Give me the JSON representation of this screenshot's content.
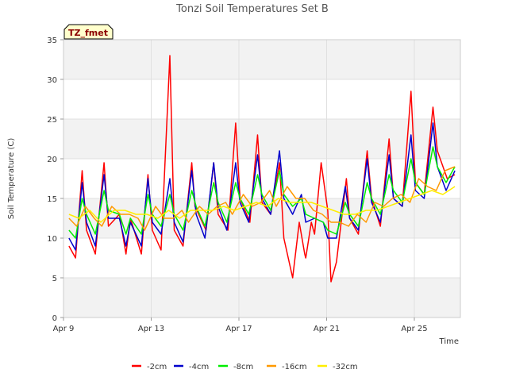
{
  "chart_data": {
    "type": "line",
    "title": "Tonzi Soil Temperatures Set B",
    "xlabel": "Time",
    "ylabel": "Soil Temperature (C)",
    "badge": "TZ_fmet",
    "xlim": [
      0,
      18.1
    ],
    "ylim": [
      0,
      35
    ],
    "yticks": [
      0,
      5,
      10,
      15,
      20,
      25,
      30,
      35
    ],
    "xticks": [
      {
        "day": 0,
        "label": "Apr 9"
      },
      {
        "day": 4,
        "label": "Apr 13"
      },
      {
        "day": 8,
        "label": "Apr 17"
      },
      {
        "day": 12,
        "label": "Apr 21"
      },
      {
        "day": 16,
        "label": "Apr 25"
      }
    ],
    "grid": true,
    "legend_position": "bottom",
    "series": [
      {
        "name": "-2cm",
        "color": "#ff0000",
        "x": [
          0.25,
          0.55,
          0.85,
          1.05,
          1.45,
          1.85,
          2.05,
          2.55,
          2.85,
          3.05,
          3.55,
          3.85,
          4.05,
          4.45,
          4.85,
          5.05,
          5.45,
          5.85,
          6.0,
          6.5,
          6.85,
          7.05,
          7.5,
          7.85,
          8.05,
          8.5,
          8.85,
          9.05,
          9.45,
          9.85,
          10.05,
          10.45,
          10.75,
          11.0,
          11.05,
          11.3,
          11.45,
          11.75,
          12.05,
          12.2,
          12.45,
          12.9,
          13.05,
          13.45,
          13.85,
          14.05,
          14.45,
          14.85,
          15.05,
          15.45,
          15.85,
          16.05,
          16.45,
          16.85,
          17.05,
          17.5,
          17.85
        ],
        "y": [
          9,
          7.5,
          18.5,
          11,
          8,
          19.5,
          11.5,
          13,
          8,
          12.5,
          8,
          18,
          11,
          8.5,
          33,
          11,
          9,
          19.5,
          14,
          11,
          19.5,
          13,
          11,
          24.5,
          15,
          12,
          23,
          14.5,
          13,
          19.5,
          10,
          5,
          12,
          8,
          7.5,
          12,
          10.5,
          19.5,
          13.5,
          4.5,
          7,
          17.5,
          12.5,
          10.5,
          21,
          15,
          11.5,
          22.5,
          15,
          14,
          28.5,
          17,
          15.5,
          26.5,
          21,
          17.5,
          18
        ]
      },
      {
        "name": "-4cm",
        "color": "#0000cc",
        "x": [
          0.25,
          0.55,
          0.85,
          1.05,
          1.45,
          1.85,
          2.05,
          2.55,
          2.85,
          3.05,
          3.55,
          3.85,
          4.05,
          4.45,
          4.85,
          5.05,
          5.45,
          5.85,
          6.05,
          6.45,
          6.85,
          7.05,
          7.45,
          7.85,
          8.05,
          8.45,
          8.85,
          9.05,
          9.45,
          9.85,
          10.05,
          10.45,
          10.85,
          11.05,
          11.45,
          11.85,
          12.05,
          12.45,
          12.85,
          13.05,
          13.45,
          13.85,
          14.05,
          14.45,
          14.85,
          15.05,
          15.45,
          15.85,
          16.05,
          16.45,
          16.85,
          17.05,
          17.45,
          17.85
        ],
        "y": [
          10,
          8.5,
          17,
          12,
          9,
          18,
          12.5,
          12.5,
          9,
          12,
          9,
          17.5,
          12,
          10.5,
          17.5,
          12,
          9.5,
          18.5,
          13,
          10,
          19.5,
          14,
          11,
          19.5,
          14.5,
          12,
          20.5,
          15,
          13,
          21,
          15,
          13,
          15.5,
          12,
          12.5,
          12,
          10,
          10,
          16.5,
          12.5,
          11,
          20,
          14.5,
          12,
          20.5,
          15,
          14,
          23,
          16,
          15,
          24.5,
          19,
          16,
          18.5
        ]
      },
      {
        "name": "-8cm",
        "color": "#00ee00",
        "x": [
          0.25,
          0.55,
          0.85,
          1.05,
          1.45,
          1.85,
          2.05,
          2.55,
          2.85,
          3.05,
          3.55,
          3.85,
          4.05,
          4.45,
          4.85,
          5.05,
          5.45,
          5.85,
          6.05,
          6.45,
          6.85,
          7.05,
          7.45,
          7.85,
          8.05,
          8.45,
          8.85,
          9.05,
          9.45,
          9.85,
          10.05,
          10.45,
          10.85,
          11.05,
          11.45,
          11.85,
          12.05,
          12.45,
          12.85,
          13.05,
          13.45,
          13.85,
          14.05,
          14.45,
          14.85,
          15.05,
          15.45,
          15.85,
          16.05,
          16.45,
          16.85,
          17.05,
          17.45,
          17.85
        ],
        "y": [
          11,
          10,
          15,
          13,
          10.5,
          16,
          13.5,
          13,
          10.5,
          12.5,
          10.5,
          15.5,
          13,
          11.5,
          15.5,
          13,
          11,
          16,
          14,
          11.5,
          17,
          14.5,
          12,
          17,
          15,
          13,
          18,
          15.5,
          13.5,
          18.5,
          15.5,
          14,
          15,
          13,
          12.5,
          12,
          11,
          10.5,
          14.5,
          13,
          11.5,
          17,
          15,
          13,
          18,
          16,
          14.5,
          20,
          17,
          15.5,
          21.5,
          19,
          17,
          19
        ]
      },
      {
        "name": "-16cm",
        "color": "#ff9900",
        "x": [
          0.25,
          0.6,
          1.0,
          1.4,
          1.75,
          2.2,
          2.6,
          3.0,
          3.4,
          3.7,
          4.2,
          4.6,
          5.0,
          5.4,
          5.7,
          6.2,
          6.6,
          7.0,
          7.4,
          7.7,
          8.2,
          8.6,
          9.0,
          9.4,
          9.7,
          10.2,
          10.6,
          11.0,
          11.4,
          11.8,
          12.2,
          12.6,
          13.0,
          13.4,
          13.8,
          14.2,
          14.6,
          15.0,
          15.4,
          15.8,
          16.2,
          16.6,
          17.0,
          17.4,
          17.85
        ],
        "y": [
          12.5,
          11.5,
          14,
          12.5,
          11.5,
          14,
          13,
          13,
          12.5,
          11,
          14,
          12.5,
          12.5,
          13.5,
          12,
          14,
          13,
          14,
          14.5,
          13,
          15.5,
          14,
          14.5,
          16,
          14,
          16.5,
          15,
          15,
          13.5,
          13,
          12,
          12,
          11.5,
          13,
          12,
          14.5,
          14,
          15,
          15.5,
          14.5,
          17.5,
          16.5,
          16,
          18.5,
          19
        ]
      },
      {
        "name": "-32cm",
        "color": "#ffee00",
        "x": [
          0.25,
          0.7,
          1.2,
          1.7,
          2.3,
          2.8,
          3.3,
          3.8,
          4.3,
          4.8,
          5.3,
          5.8,
          6.3,
          6.8,
          7.3,
          7.8,
          8.3,
          8.8,
          9.3,
          9.8,
          10.3,
          10.8,
          11.3,
          11.8,
          12.3,
          12.8,
          13.3,
          13.8,
          14.3,
          14.8,
          15.3,
          15.8,
          16.3,
          16.8,
          17.3,
          17.85
        ],
        "y": [
          13,
          12.5,
          13.5,
          12,
          13.5,
          13.5,
          13,
          13,
          12.5,
          13.5,
          12.5,
          13.5,
          13.5,
          13.5,
          14,
          13.5,
          14,
          14.5,
          14,
          15,
          14.5,
          14.5,
          14.5,
          14,
          13.5,
          13,
          13,
          13.5,
          13.5,
          14,
          14.5,
          15,
          15.5,
          16,
          15.5,
          16.5
        ]
      }
    ]
  }
}
